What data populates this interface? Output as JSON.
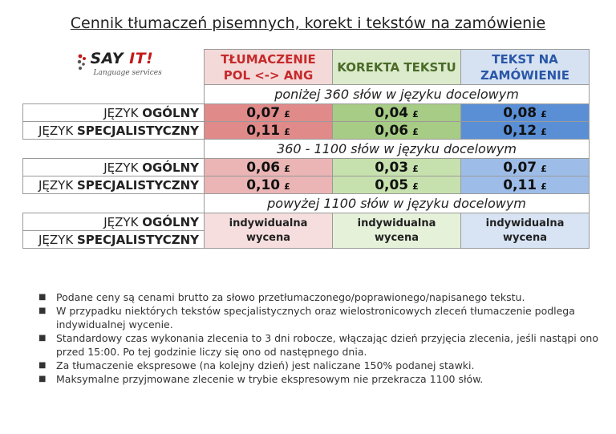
{
  "title": "Cennik tłumaczeń pisemnych, korekt i tekstów na zamówienie",
  "logo": {
    "brand_main": "SAY ",
    "brand_accent": "IT!",
    "tagline": "Language services"
  },
  "columns": [
    {
      "line1": "TŁUMACZENIE",
      "line2": "POL <-> ANG"
    },
    {
      "line1": "KOREKTA TEKSTU",
      "line2": ""
    },
    {
      "line1": "TEKST NA",
      "line2": "ZAMÓWIENIE"
    }
  ],
  "currency": "£",
  "row_labels": {
    "general_prefix": "JĘZYK ",
    "general_bold": "OGÓLNY",
    "special_prefix": "JĘZYK ",
    "special_bold": "SPECJALISTYCZNY"
  },
  "bands": [
    {
      "label": "poniżej 360 słów w języku docelowym",
      "general": [
        "0,07",
        "0,04",
        "0,08"
      ],
      "special": [
        "0,11",
        "0,06",
        "0,12"
      ]
    },
    {
      "label": "360 - 1100 słów w języku docelowym",
      "general": [
        "0,06",
        "0,03",
        "0,07"
      ],
      "special": [
        "0,10",
        "0,05",
        "0,11"
      ]
    },
    {
      "label": "powyżej 1100 słów w języku docelowym",
      "individual": [
        "indywidualna",
        "wycena"
      ]
    }
  ],
  "notes": [
    "Podane ceny są cenami brutto za słowo przetłumaczonego/poprawionego/napisanego tekstu.",
    "W przypadku niektórych tekstów specjalistycznych oraz wielostronicowych zleceń tłumaczenie podlega indywidualnej wycenie.",
    "Standardowy czas wykonania zlecenia to 3 dni robocze, włączając dzień przyjęcia zlecenia, jeśli nastąpi ono przed 15:00. Po tej godzinie liczy się ono od następnego dnia.",
    "Za tłumaczenie ekspresowe (na kolejny dzień) jest naliczane 150% podanej stawki.",
    "Maksymalne przyjmowane zlecenie w trybie ekspresowym nie przekracza 1100 słów."
  ],
  "bullet": "■"
}
